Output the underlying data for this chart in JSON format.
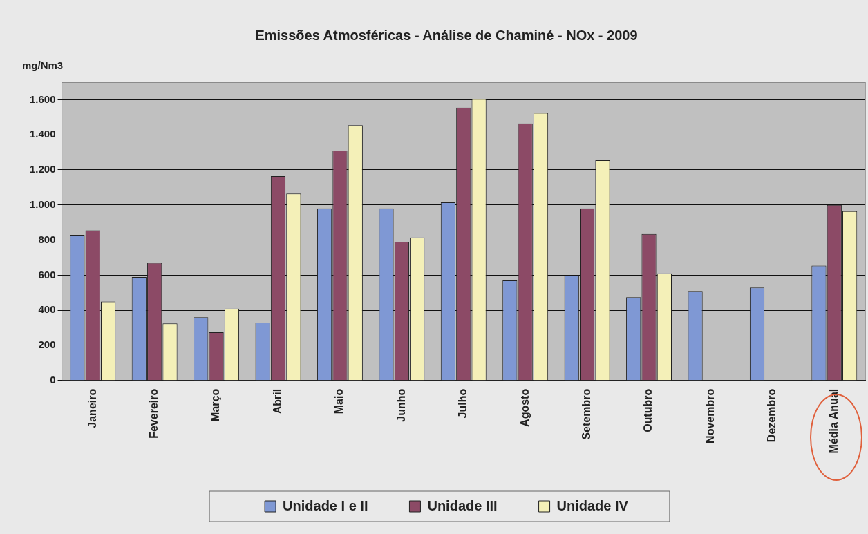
{
  "chart_data": {
    "type": "bar",
    "title": "Emissões Atmosféricas - Análise de Chaminé - NOx - 2009",
    "ylabel": "mg/Nm3",
    "categories": [
      "Janeiro",
      "Fevereiro",
      "Março",
      "Abril",
      "Maio",
      "Junho",
      "Julho",
      "Agosto",
      "Setembro",
      "Outubro",
      "Novembro",
      "Dezembro",
      "Média Anual"
    ],
    "series": [
      {
        "name": "Unidade I e II",
        "color": "#7f98d4",
        "values": [
          830,
          590,
          360,
          330,
          980,
          980,
          1015,
          570,
          600,
          475,
          510,
          530,
          655
        ]
      },
      {
        "name": "Unidade III",
        "color": "#8c4a66",
        "values": [
          855,
          670,
          275,
          1165,
          1310,
          790,
          1555,
          1465,
          980,
          835,
          null,
          null,
          1000
        ]
      },
      {
        "name": "Unidade IV",
        "color": "#f4f0b8",
        "values": [
          450,
          325,
          410,
          1065,
          1455,
          815,
          1605,
          1525,
          1255,
          610,
          null,
          null,
          965
        ]
      }
    ],
    "ylim": [
      0,
      1700
    ],
    "yticks": [
      0,
      {
        "value": 200,
        "label": "200"
      },
      {
        "value": 400,
        "label": "400"
      },
      {
        "value": 600,
        "label": "600"
      },
      {
        "value": 800,
        "label": "800"
      },
      {
        "value": 1000,
        "label": "1.000"
      },
      {
        "value": 1200,
        "label": "1.200"
      },
      {
        "value": 1400,
        "label": "1.400"
      },
      {
        "value": 1600,
        "label": "1.600"
      }
    ],
    "grid": "y",
    "legend": "bottom"
  }
}
